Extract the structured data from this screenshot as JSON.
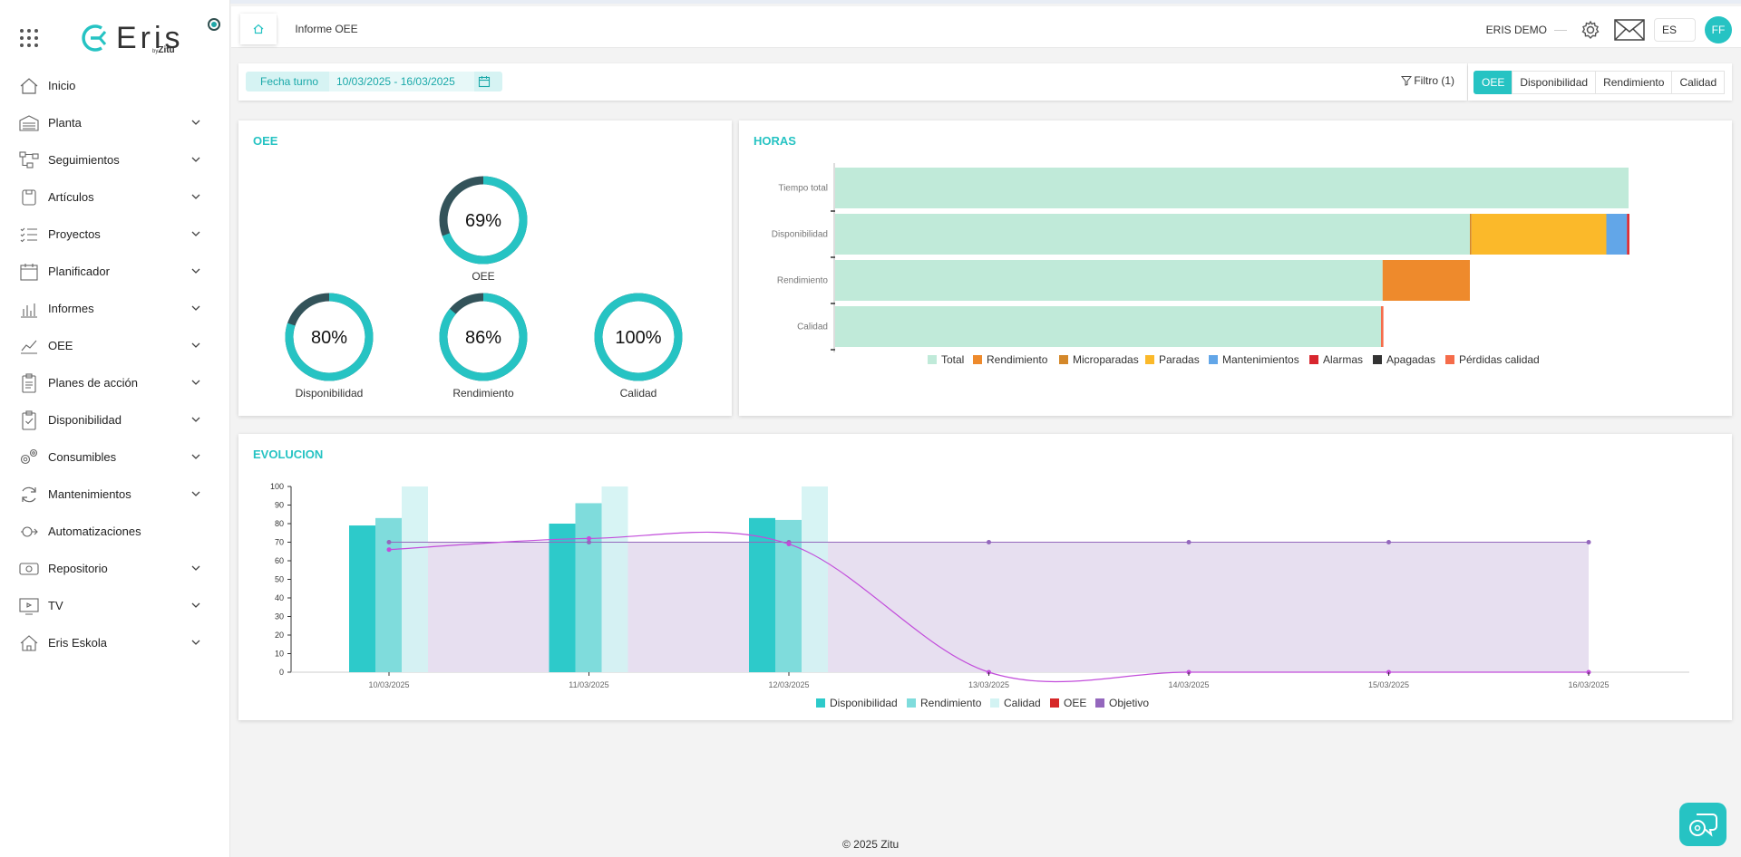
{
  "sidebar": {
    "logo_text": "Eris",
    "logo_by": "by",
    "logo_brand": "Zitu",
    "items": [
      {
        "label": "Inicio",
        "icon": "home-icon",
        "chevron": false
      },
      {
        "label": "Planta",
        "icon": "warehouse-icon",
        "chevron": true
      },
      {
        "label": "Seguimientos",
        "icon": "flow-icon",
        "chevron": true
      },
      {
        "label": "Artículos",
        "icon": "box-icon",
        "chevron": true
      },
      {
        "label": "Proyectos",
        "icon": "checklist-icon",
        "chevron": true
      },
      {
        "label": "Planificador",
        "icon": "calendar-icon",
        "chevron": true
      },
      {
        "label": "Informes",
        "icon": "bar-chart-icon",
        "chevron": true
      },
      {
        "label": "OEE",
        "icon": "line-chart-icon",
        "chevron": true
      },
      {
        "label": "Planes de acción",
        "icon": "clipboard-icon",
        "chevron": true
      },
      {
        "label": "Disponibilidad",
        "icon": "clipboard-check-icon",
        "chevron": true
      },
      {
        "label": "Consumibles",
        "icon": "gears-icon",
        "chevron": true
      },
      {
        "label": "Mantenimientos",
        "icon": "refresh-icon",
        "chevron": true
      },
      {
        "label": "Automatizaciones",
        "icon": "automation-icon",
        "chevron": false
      },
      {
        "label": "Repositorio",
        "icon": "archive-icon",
        "chevron": true
      },
      {
        "label": "TV",
        "icon": "tv-icon",
        "chevron": true
      },
      {
        "label": "Eris Eskola",
        "icon": "school-icon",
        "chevron": true
      }
    ]
  },
  "topbar": {
    "breadcrumb": "Informe OEE",
    "user": "ERIS DEMO",
    "lang": "ES",
    "avatar": "FF"
  },
  "filters": {
    "date_label": "Fecha turno",
    "date_value": "10/03/2025 - 16/03/2025",
    "filter_label": "Filtro (1)"
  },
  "tabs": [
    {
      "label": "OEE",
      "active": true
    },
    {
      "label": "Disponibilidad",
      "active": false
    },
    {
      "label": "Rendimiento",
      "active": false
    },
    {
      "label": "Calidad",
      "active": false
    }
  ],
  "oee_card": {
    "title": "OEE",
    "gauges": [
      {
        "label": "OEE",
        "value": 69,
        "text": "69%"
      },
      {
        "label": "Disponibilidad",
        "value": 80,
        "text": "80%"
      },
      {
        "label": "Rendimiento",
        "value": 86,
        "text": "86%"
      },
      {
        "label": "Calidad",
        "value": 100,
        "text": "100%"
      }
    ]
  },
  "horas_card": {
    "title": "HORAS"
  },
  "evo_card": {
    "title": "EVOLUCION"
  },
  "colors": {
    "accent": "#26c3c3",
    "gauge_track": "#33535a",
    "total": "#c0ead9",
    "rendimiento": "#ee8a2c",
    "microparadas": "#d4882a",
    "paradas": "#fbb92a",
    "mantenimientos": "#62a6e8",
    "alarmas": "#d8262e",
    "apagadas": "#333333",
    "perdidas": "#f56c4a",
    "disp_bar": "#2dcaca",
    "rend_bar": "#7fdcdc",
    "cal_bar": "#d3f3f3",
    "oee_line": "#d62728",
    "objetivo": "#9467bd",
    "objetivo_fill": "#e7dff0",
    "spline": "#c24ddb"
  },
  "chart_data": [
    {
      "type": "bar",
      "orientation": "horizontal",
      "stacked": true,
      "title": "HORAS",
      "categories": [
        "Tiempo total",
        "Disponibilidad",
        "Rendimiento",
        "Calidad"
      ],
      "xlim": [
        0,
        100
      ],
      "series": [
        {
          "name": "Total",
          "values": [
            100,
            80,
            69,
            68.8
          ]
        },
        {
          "name": "Rendimiento",
          "values": [
            0,
            0,
            11,
            0
          ]
        },
        {
          "name": "Microparadas",
          "values": [
            0,
            0.2,
            0,
            0
          ]
        },
        {
          "name": "Paradas",
          "values": [
            0,
            17,
            0,
            0
          ]
        },
        {
          "name": "Mantenimientos",
          "values": [
            0,
            2.6,
            0,
            0
          ]
        },
        {
          "name": "Alarmas",
          "values": [
            0,
            0.3,
            0,
            0
          ]
        },
        {
          "name": "Apagadas",
          "values": [
            0,
            0,
            0,
            0
          ]
        },
        {
          "name": "Pérdidas calidad",
          "values": [
            0,
            0,
            0,
            0.3
          ]
        }
      ],
      "legend": "bottom"
    },
    {
      "type": "bar",
      "title": "EVOLUCION",
      "categories": [
        "10/03/2025",
        "11/03/2025",
        "12/03/2025",
        "13/03/2025",
        "14/03/2025",
        "15/03/2025",
        "16/03/2025"
      ],
      "ylim": [
        0,
        100
      ],
      "yticks": [
        0,
        10,
        20,
        30,
        40,
        50,
        60,
        70,
        80,
        90,
        100
      ],
      "series": [
        {
          "name": "Disponibilidad",
          "type": "bar",
          "values": [
            79,
            80,
            83,
            0,
            0,
            0,
            0
          ]
        },
        {
          "name": "Rendimiento",
          "type": "bar",
          "values": [
            83,
            91,
            82,
            0,
            0,
            0,
            0
          ]
        },
        {
          "name": "Calidad",
          "type": "bar",
          "values": [
            100,
            100,
            100,
            0,
            0,
            0,
            0
          ]
        },
        {
          "name": "OEE",
          "type": "line",
          "values": [
            66,
            72,
            69,
            0,
            0,
            0,
            0
          ]
        },
        {
          "name": "Objetivo",
          "type": "area",
          "values": [
            70,
            70,
            70,
            70,
            70,
            70,
            70
          ]
        }
      ],
      "legend": "bottom"
    }
  ],
  "footer": "© 2025 Zitu"
}
